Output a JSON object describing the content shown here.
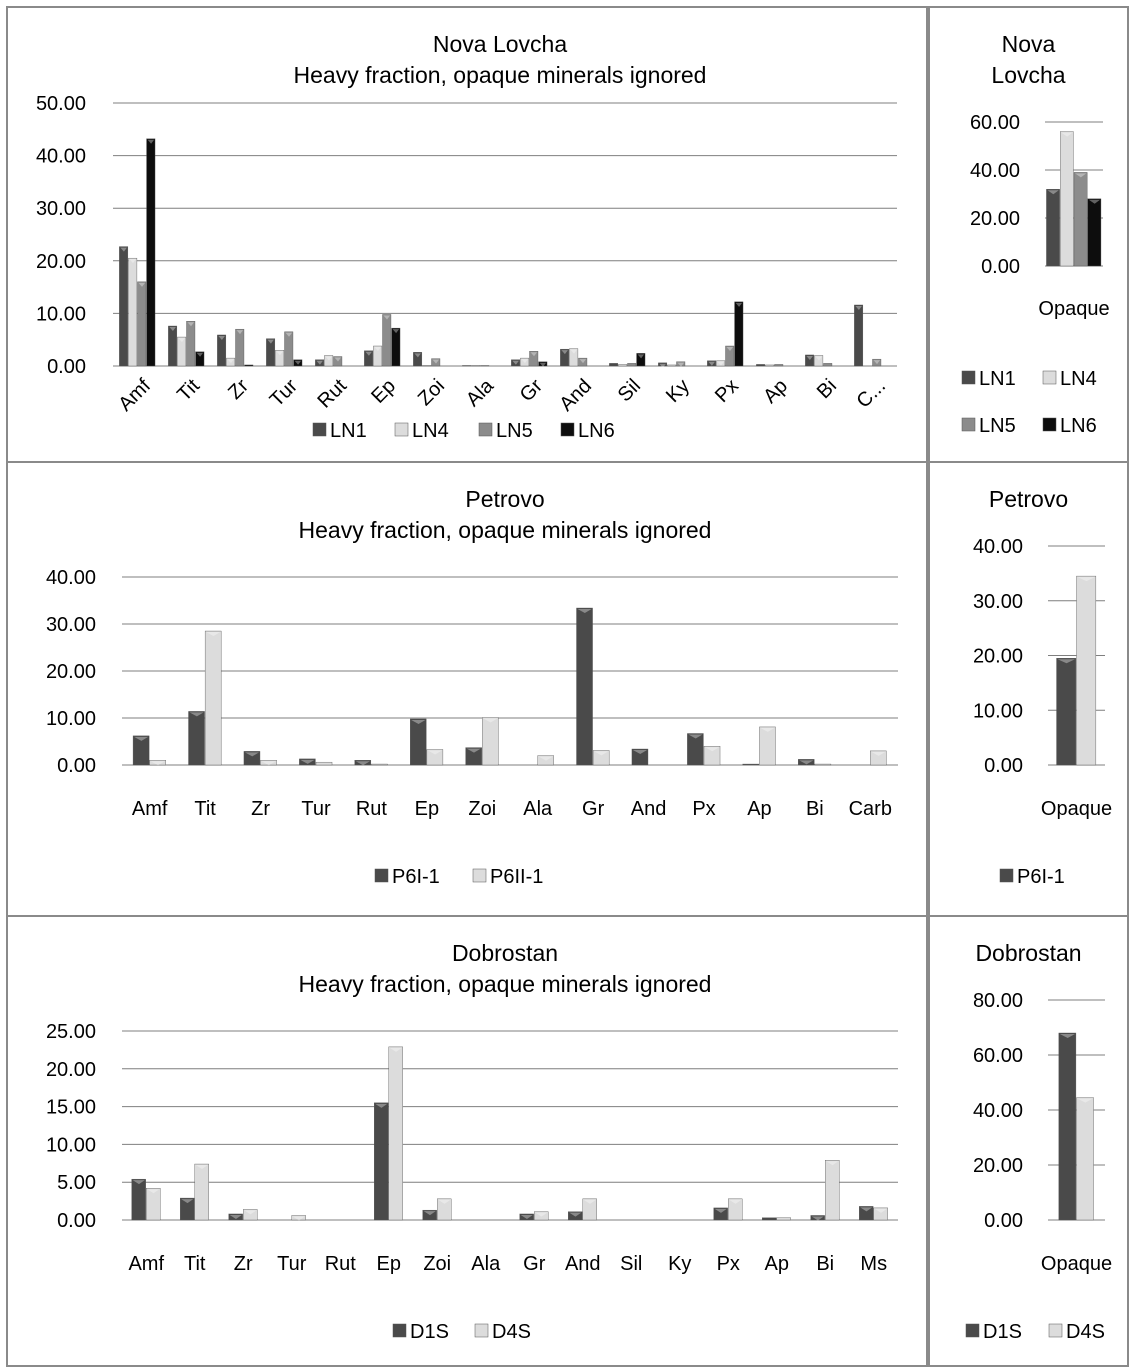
{
  "colors": {
    "grid": "#7f7f7f",
    "s1": "#4a4a4a",
    "s2": "#dcdcdc",
    "s3": "#8c8c8c",
    "s4": "#0d0d0d"
  },
  "chart_data": [
    {
      "type": "bar",
      "title": "Nova Lovcha",
      "subtitle": "Heavy fraction, opaque minerals ignored",
      "categories": [
        "Amf",
        "Tit",
        "Zr",
        "Tur",
        "Rut",
        "Ep",
        "Zoi",
        "Ala",
        "Gr",
        "And",
        "Sil",
        "Ky",
        "Px",
        "Ap",
        "Bi",
        "C..."
      ],
      "yticks": [
        "0.00",
        "10.00",
        "20.00",
        "30.00",
        "40.00",
        "50.00"
      ],
      "ylim": [
        0,
        50
      ],
      "legend": "bottom",
      "series": [
        {
          "name": "LN1",
          "values": [
            22.7,
            7.6,
            5.9,
            5.2,
            1.2,
            2.9,
            2.6,
            0.1,
            1.2,
            3.2,
            0.5,
            0.6,
            1.0,
            0.3,
            2.1,
            11.6
          ]
        },
        {
          "name": "LN4",
          "values": [
            20.5,
            5.5,
            1.5,
            3.0,
            2.0,
            3.8,
            0.1,
            0.1,
            1.5,
            3.3,
            0.3,
            0.2,
            1.0,
            0.2,
            2.0,
            0.0
          ]
        },
        {
          "name": "LN5",
          "values": [
            16.0,
            8.5,
            7.0,
            6.5,
            1.8,
            9.8,
            1.4,
            0.1,
            2.8,
            1.5,
            0.5,
            0.8,
            3.8,
            0.3,
            0.5,
            1.3
          ]
        },
        {
          "name": "LN6",
          "values": [
            43.2,
            2.7,
            0.2,
            1.2,
            0.0,
            7.2,
            0.0,
            0.0,
            0.8,
            0.0,
            2.4,
            0.0,
            12.2,
            0.0,
            0.0,
            0.0
          ]
        }
      ]
    },
    {
      "type": "bar",
      "title": "Nova\nLovcha",
      "categories": [
        "Opaque"
      ],
      "yticks": [
        "0.00",
        "20.00",
        "40.00",
        "60.00"
      ],
      "ylim": [
        0,
        60
      ],
      "legend": "bottom",
      "series": [
        {
          "name": "LN1",
          "values": [
            32.0
          ]
        },
        {
          "name": "LN4",
          "values": [
            56.0
          ]
        },
        {
          "name": "LN5",
          "values": [
            39.0
          ]
        },
        {
          "name": "LN6",
          "values": [
            28.0
          ]
        }
      ]
    },
    {
      "type": "bar",
      "title": "Petrovo",
      "subtitle": "Heavy fraction, opaque minerals ignored",
      "categories": [
        "Amf",
        "Tit",
        "Zr",
        "Tur",
        "Rut",
        "Ep",
        "Zoi",
        "Ala",
        "Gr",
        "And",
        "Px",
        "Ap",
        "Bi",
        "Carb"
      ],
      "yticks": [
        "0.00",
        "10.00",
        "20.00",
        "30.00",
        "40.00"
      ],
      "ylim": [
        0,
        40
      ],
      "legend": "bottom",
      "series": [
        {
          "name": "P6I-1",
          "values": [
            6.2,
            11.4,
            2.9,
            1.3,
            1.0,
            9.8,
            3.7,
            0.0,
            33.4,
            3.4,
            6.7,
            0.2,
            1.2,
            0.0
          ]
        },
        {
          "name": "P6II-1",
          "values": [
            1.0,
            28.5,
            1.0,
            0.6,
            0.2,
            3.3,
            10.1,
            2.0,
            3.1,
            0.0,
            4.0,
            8.1,
            0.2,
            3.0
          ]
        }
      ]
    },
    {
      "type": "bar",
      "title": "Petrovo",
      "categories": [
        "Opaque"
      ],
      "yticks": [
        "0.00",
        "10.00",
        "20.00",
        "30.00",
        "40.00"
      ],
      "ylim": [
        0,
        40
      ],
      "legend": "bottom",
      "series": [
        {
          "name": "P6I-1",
          "values": [
            19.5
          ]
        },
        {
          "name": "",
          "values": [
            34.5
          ]
        }
      ]
    },
    {
      "type": "bar",
      "title": "Dobrostan",
      "subtitle": "Heavy fraction, opaque minerals ignored",
      "categories": [
        "Amf",
        "Tit",
        "Zr",
        "Tur",
        "Rut",
        "Ep",
        "Zoi",
        "Ala",
        "Gr",
        "And",
        "Sil",
        "Ky",
        "Px",
        "Ap",
        "Bi",
        "Ms"
      ],
      "yticks": [
        "0.00",
        "5.00",
        "10.00",
        "15.00",
        "20.00",
        "25.00"
      ],
      "ylim": [
        0,
        25
      ],
      "legend": "bottom",
      "series": [
        {
          "name": "D1S",
          "values": [
            5.4,
            2.9,
            0.8,
            0.0,
            0.0,
            15.5,
            1.3,
            0.0,
            0.8,
            1.1,
            0.0,
            0.0,
            1.6,
            0.3,
            0.6,
            1.8
          ]
        },
        {
          "name": "D4S",
          "values": [
            4.2,
            7.4,
            1.4,
            0.6,
            0.0,
            22.9,
            2.8,
            0.0,
            1.1,
            2.8,
            0.0,
            0.0,
            2.8,
            0.3,
            7.9,
            1.6
          ]
        }
      ]
    },
    {
      "type": "bar",
      "title": "Dobrostan",
      "categories": [
        "Opaque"
      ],
      "yticks": [
        "0.00",
        "20.00",
        "40.00",
        "60.00",
        "80.00"
      ],
      "ylim": [
        0,
        80
      ],
      "legend": "bottom",
      "series": [
        {
          "name": "D1S",
          "values": [
            68.0
          ]
        },
        {
          "name": "D4S",
          "values": [
            44.5
          ]
        }
      ]
    }
  ]
}
